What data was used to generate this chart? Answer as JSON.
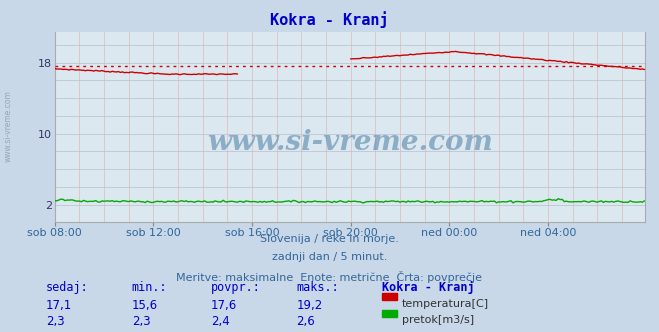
{
  "title": "Kokra - Kranj",
  "title_color": "#0000cc",
  "fig_bg_color": "#c8d8e8",
  "plot_bg_color": "#dce8f0",
  "temp_color": "#cc0000",
  "flow_color": "#00aa00",
  "avg_line_color": "#cc0000",
  "avg_value": 17.6,
  "xlim": [
    0,
    287
  ],
  "ylim_temp": [
    0,
    21.5
  ],
  "ytick_positions": [
    2,
    10,
    18
  ],
  "ytick_labels": [
    "2",
    "10",
    "18"
  ],
  "xtick_positions": [
    0,
    48,
    96,
    144,
    192,
    240
  ],
  "xtick_labels": [
    "sob 08:00",
    "sob 12:00",
    "sob 16:00",
    "sob 20:00",
    "ned 00:00",
    "ned 04:00"
  ],
  "watermark": "www.si-vreme.com",
  "watermark_color": "#5588aa",
  "subtitle1": "Slovenija / reke in morje.",
  "subtitle2": "zadnji dan / 5 minut.",
  "subtitle3": "Meritve: maksimalne  Enote: metrične  Črta: povprečje",
  "subtitle_color": "#336699",
  "table_color": "#0000cc",
  "table_header": [
    "sedaj:",
    "min.:",
    "povpr.:",
    "maks.:",
    "Kokra - Kranj"
  ],
  "table_row1_vals": [
    "17,1",
    "15,6",
    "17,6",
    "19,2"
  ],
  "table_row2_vals": [
    "2,3",
    "2,3",
    "2,4",
    "2,6"
  ],
  "legend_temp": "temperatura[C]",
  "legend_flow": "pretok[m3/s]",
  "grid_minor_color": "#ddbbbb",
  "grid_major_color": "#bbbbcc",
  "left_label": "www.si-vreme.com",
  "left_label_color": "#8899aa"
}
